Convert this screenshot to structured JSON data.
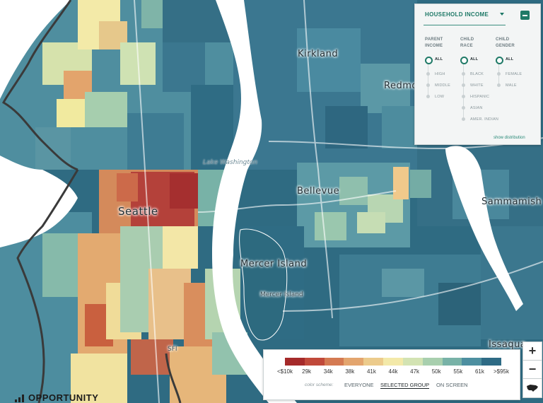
{
  "map": {
    "places": {
      "kirkland": "Kirkland",
      "redmond": "Redmo",
      "seattle": "Seattle",
      "bellevue": "Bellevue",
      "sammamish": "Sammamish",
      "mercer_island": "Mercer Island",
      "mercer_island_small": "Mercer Island",
      "issaquah": "Issaqua",
      "lake_washington": "Lake Washington",
      "route": "SFI"
    },
    "colors": {
      "water": "#ffffff",
      "land_boundary": "#3a3a3a",
      "dark_teal": "#2d6a7f",
      "teal": "#4c8aa0"
    }
  },
  "panel": {
    "title": "HOUSEHOLD INCOME",
    "show_distribution": "show distribution",
    "columns": [
      {
        "heading_1": "PARENT",
        "heading_2": "INCOME",
        "options": [
          "ALL",
          "HIGH",
          "MIDDLE",
          "LOW"
        ],
        "selected": "ALL"
      },
      {
        "heading_1": "CHILD",
        "heading_2": "RACE",
        "options": [
          "ALL",
          "BLACK",
          "WHITE",
          "HISPANIC",
          "ASIAN",
          "AMER. INDIAN"
        ],
        "selected": "ALL"
      },
      {
        "heading_1": "CHILD",
        "heading_2": "GENDER",
        "options": [
          "ALL",
          "FEMALE",
          "MALE"
        ],
        "selected": "ALL"
      }
    ]
  },
  "legend": {
    "bins": [
      "<$10k",
      "29k",
      "34k",
      "38k",
      "41k",
      "44k",
      "47k",
      "50k",
      "55k",
      "61k",
      ">$95k"
    ],
    "colors": [
      "#a52a2a",
      "#c0493a",
      "#d47a52",
      "#e3a56e",
      "#eccb8c",
      "#f3e9a9",
      "#d3e3b3",
      "#a8cfae",
      "#78b2a7",
      "#4d8fa0",
      "#2e6b85"
    ],
    "color_scheme_label": "color scheme:",
    "schemes": [
      "EVERYONE",
      "SELECTED GROUP",
      "ON SCREEN"
    ],
    "active_scheme": "SELECTED GROUP"
  },
  "zoom": {
    "in": "+",
    "out": "−"
  },
  "logo": {
    "text": "OPPORTUNITY"
  },
  "icons": [
    "usa-map-icon",
    "chevron-down-icon",
    "collapse-icon"
  ]
}
